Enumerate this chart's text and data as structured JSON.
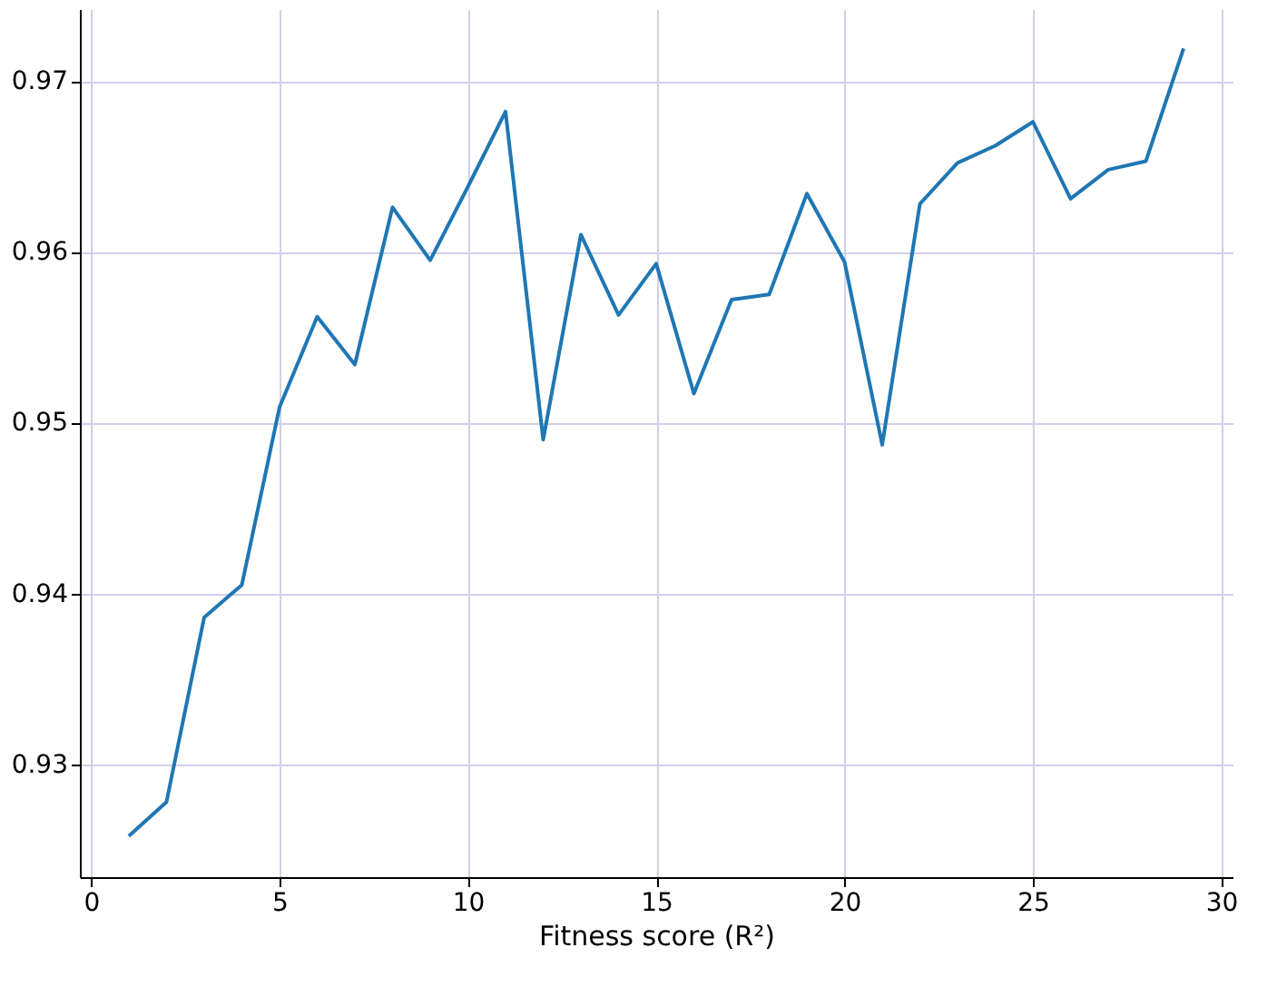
{
  "chart_data": {
    "type": "line",
    "xlabel": "Fitness score (R²)",
    "x": [
      1,
      2,
      3,
      4,
      5,
      6,
      7,
      8,
      9,
      10,
      11,
      12,
      13,
      14,
      15,
      16,
      17,
      18,
      19,
      20,
      21,
      22,
      23,
      24,
      25,
      26,
      27,
      28,
      29
    ],
    "series": [
      {
        "color": "#1f77b4",
        "values": [
          0.9258,
          0.9278,
          0.9386,
          0.9405,
          0.9509,
          0.9562,
          0.9534,
          0.9626,
          0.9595,
          0.9638,
          0.9682,
          0.949,
          0.961,
          0.9563,
          0.9593,
          0.9517,
          0.9572,
          0.9575,
          0.9634,
          0.9594,
          0.9487,
          0.9628,
          0.9652,
          0.9662,
          0.9676,
          0.9631,
          0.9648,
          0.9653,
          0.9719
        ]
      }
    ],
    "xlim": [
      -0.3,
      30.3
    ],
    "xticks": [
      0,
      5,
      10,
      15,
      20,
      25,
      30
    ],
    "ylim": [
      0.9234,
      0.9742
    ],
    "yticks": [
      0.93,
      0.94,
      0.95,
      0.96,
      0.97
    ],
    "grid": true,
    "line_style": "solid",
    "marker": "none"
  }
}
